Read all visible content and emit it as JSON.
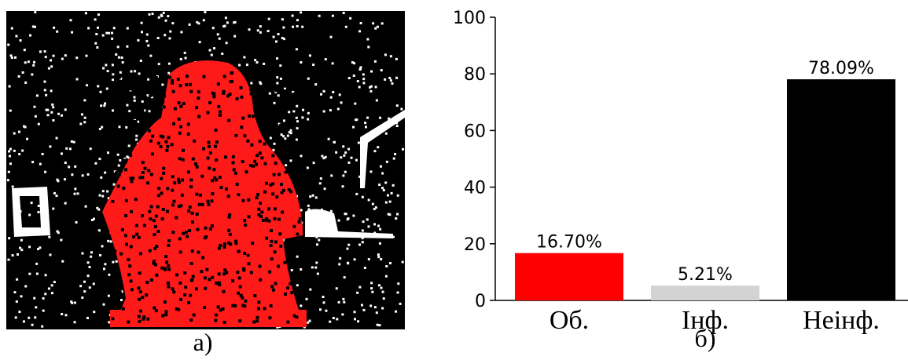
{
  "image_panel": {
    "caption": "а)"
  },
  "chart_data": {
    "type": "bar",
    "caption": "б)",
    "categories": [
      "Об.",
      "Інф.",
      "Неінф."
    ],
    "values": [
      16.7,
      5.21,
      78.09
    ],
    "value_labels": [
      "16.70%",
      "5.21%",
      "78.09%"
    ],
    "colors": [
      "#ff0000",
      "#d3d3d3",
      "#000000"
    ],
    "ylim": [
      0,
      100
    ],
    "yticks": [
      0,
      20,
      40,
      60,
      80,
      100
    ]
  }
}
